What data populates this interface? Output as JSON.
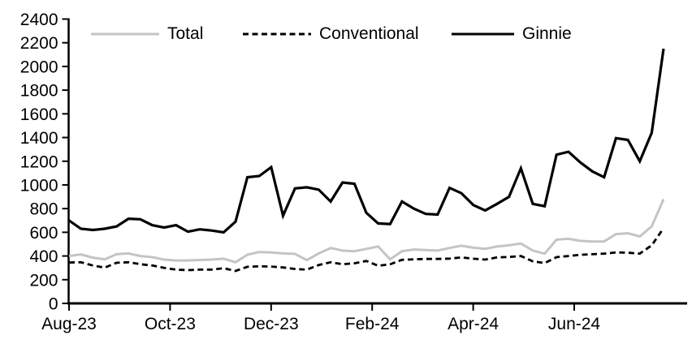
{
  "chart_data": {
    "type": "line",
    "title": "",
    "legend_position": "top",
    "grid": false,
    "x_frequency": "weekly",
    "ylim": [
      0,
      2400
    ],
    "y_tick_step": 200,
    "y_ticks": [
      0,
      200,
      400,
      600,
      800,
      1000,
      1200,
      1400,
      1600,
      1800,
      2000,
      2200,
      2400
    ],
    "x_tick_labels": [
      "Aug-23",
      "Oct-23",
      "Dec-23",
      "Feb-24",
      "Apr-24",
      "Jun-24"
    ],
    "axis_color": "#000000",
    "background_color": "#ffffff",
    "series": [
      {
        "name": "Total",
        "color": "#c4c4c4",
        "style": "solid",
        "values": [
          400,
          413,
          386,
          372,
          415,
          422,
          400,
          390,
          370,
          362,
          362,
          366,
          370,
          377,
          347,
          411,
          434,
          429,
          422,
          418,
          365,
          422,
          468,
          446,
          440,
          460,
          480,
          372,
          440,
          455,
          450,
          446,
          468,
          487,
          470,
          461,
          480,
          490,
          505,
          446,
          420,
          538,
          545,
          528,
          522,
          523,
          585,
          592,
          565,
          650,
          880
        ]
      },
      {
        "name": "Conventional",
        "color": "#000000",
        "style": "dashed",
        "values": [
          345,
          347,
          320,
          302,
          343,
          347,
          331,
          320,
          300,
          285,
          281,
          285,
          285,
          297,
          274,
          309,
          313,
          311,
          303,
          290,
          285,
          324,
          347,
          331,
          338,
          358,
          318,
          330,
          368,
          372,
          375,
          375,
          378,
          388,
          377,
          370,
          388,
          392,
          400,
          355,
          340,
          390,
          400,
          410,
          415,
          420,
          430,
          428,
          420,
          490,
          635
        ]
      },
      {
        "name": "Ginnie",
        "color": "#000000",
        "style": "solid",
        "values": [
          700,
          630,
          620,
          630,
          650,
          715,
          710,
          660,
          640,
          660,
          605,
          625,
          615,
          600,
          690,
          1065,
          1075,
          1150,
          740,
          970,
          980,
          960,
          860,
          1020,
          1010,
          765,
          675,
          670,
          860,
          800,
          755,
          750,
          975,
          930,
          830,
          785,
          840,
          900,
          1140,
          840,
          820,
          1255,
          1280,
          1190,
          1115,
          1065,
          1395,
          1380,
          1200,
          1440,
          2150
        ]
      }
    ]
  }
}
